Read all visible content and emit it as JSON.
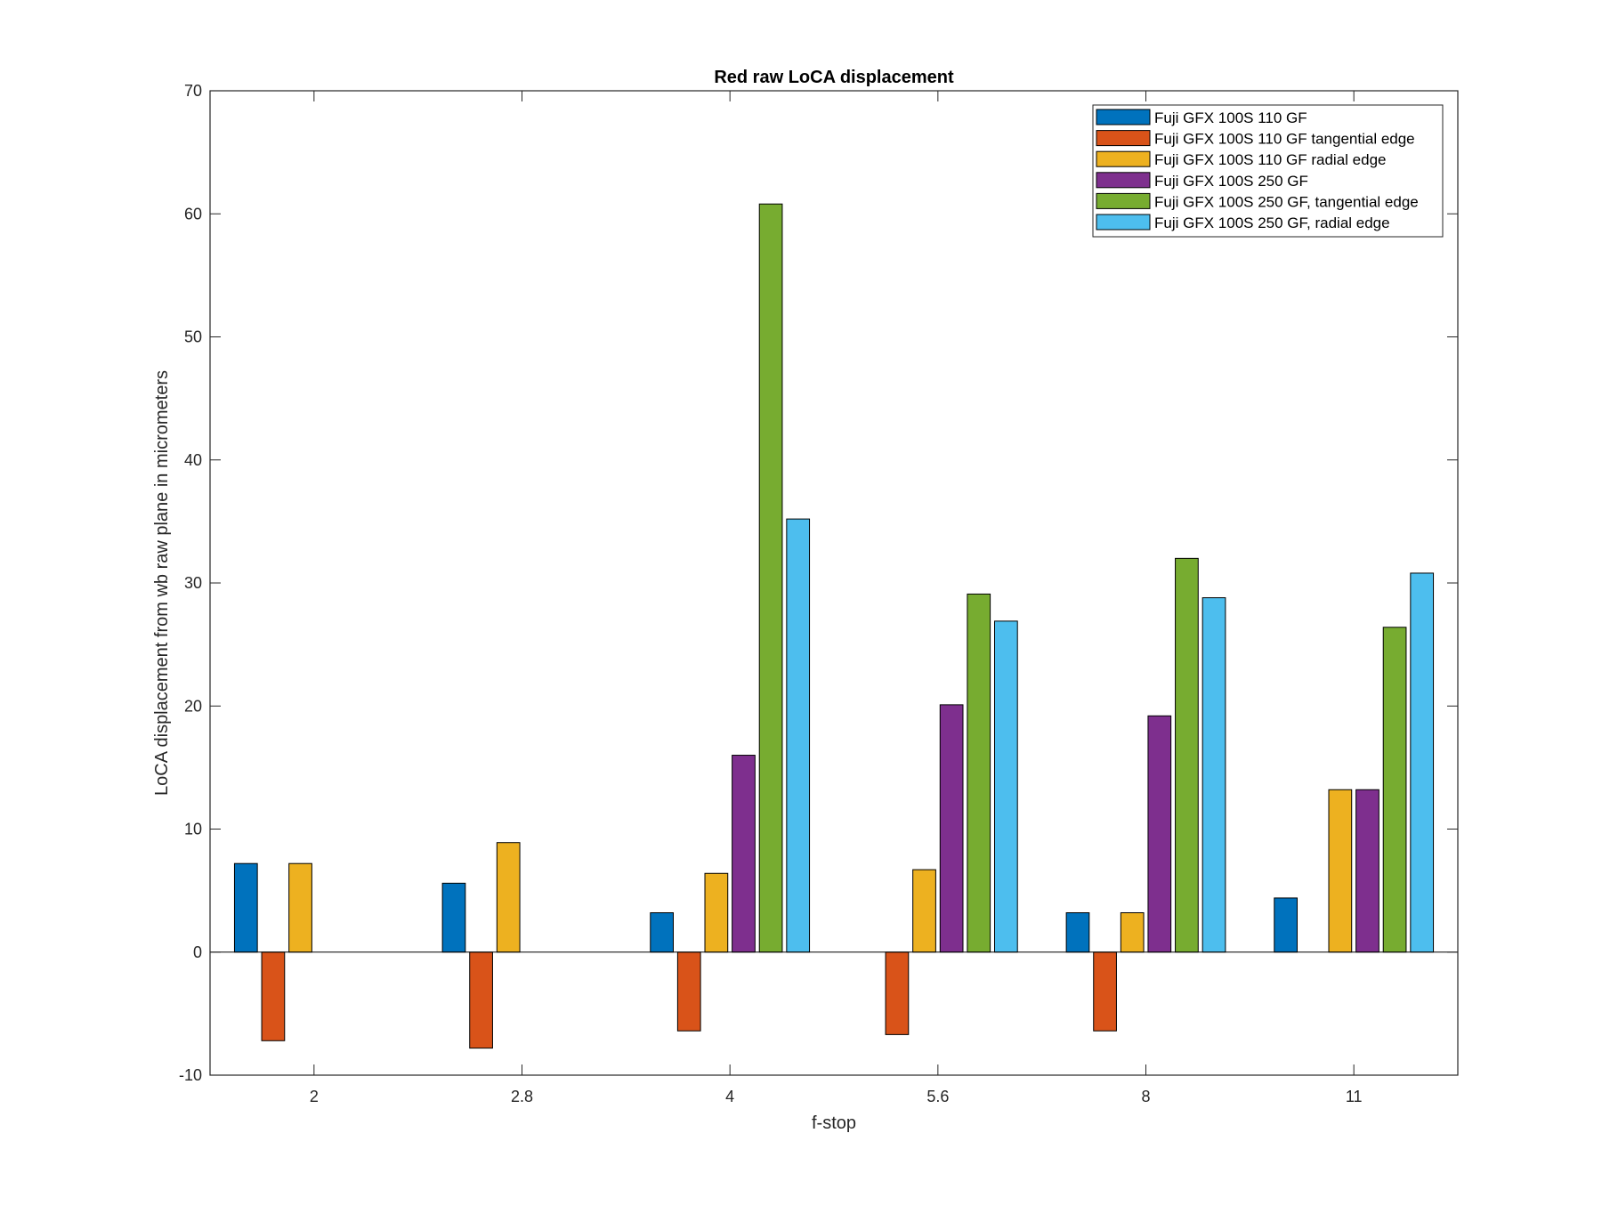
{
  "chart_data": {
    "type": "bar",
    "title": "Red raw  LoCA displacement",
    "xlabel": "f-stop",
    "ylabel": "LoCA displacement from wb raw plane in micrometers",
    "categories": [
      "2",
      "2.8",
      "4",
      "5.6",
      "8",
      "11"
    ],
    "ylim": [
      -10,
      70
    ],
    "yticks": [
      -10,
      0,
      10,
      20,
      30,
      40,
      50,
      60,
      70
    ],
    "grid": false,
    "legend_position": "top-right",
    "series": [
      {
        "name": "Fuji GFX 100S 110 GF",
        "color": "#0072BD",
        "values": [
          7.2,
          5.6,
          3.2,
          0,
          3.2,
          4.4
        ]
      },
      {
        "name": "Fuji GFX 100S 110 GF tangential edge",
        "color": "#D95319",
        "values": [
          -7.2,
          -7.8,
          -6.4,
          -6.7,
          -6.4,
          0
        ]
      },
      {
        "name": "Fuji GFX 100S 110 GF radial edge",
        "color": "#EDB120",
        "values": [
          7.2,
          8.9,
          6.4,
          6.7,
          3.2,
          13.2
        ]
      },
      {
        "name": "Fuji GFX 100S 250 GF",
        "color": "#7E2F8E",
        "values": [
          0,
          0,
          16.0,
          20.1,
          19.2,
          13.2
        ]
      },
      {
        "name": "Fuji GFX 100S 250 GF, tangential edge",
        "color": "#77AC30",
        "values": [
          0,
          0,
          60.8,
          29.1,
          32.0,
          26.4
        ]
      },
      {
        "name": "Fuji GFX 100S 250 GF, radial edge",
        "color": "#4DBEEE",
        "values": [
          0,
          0,
          35.2,
          26.9,
          28.8,
          30.8
        ]
      }
    ]
  }
}
